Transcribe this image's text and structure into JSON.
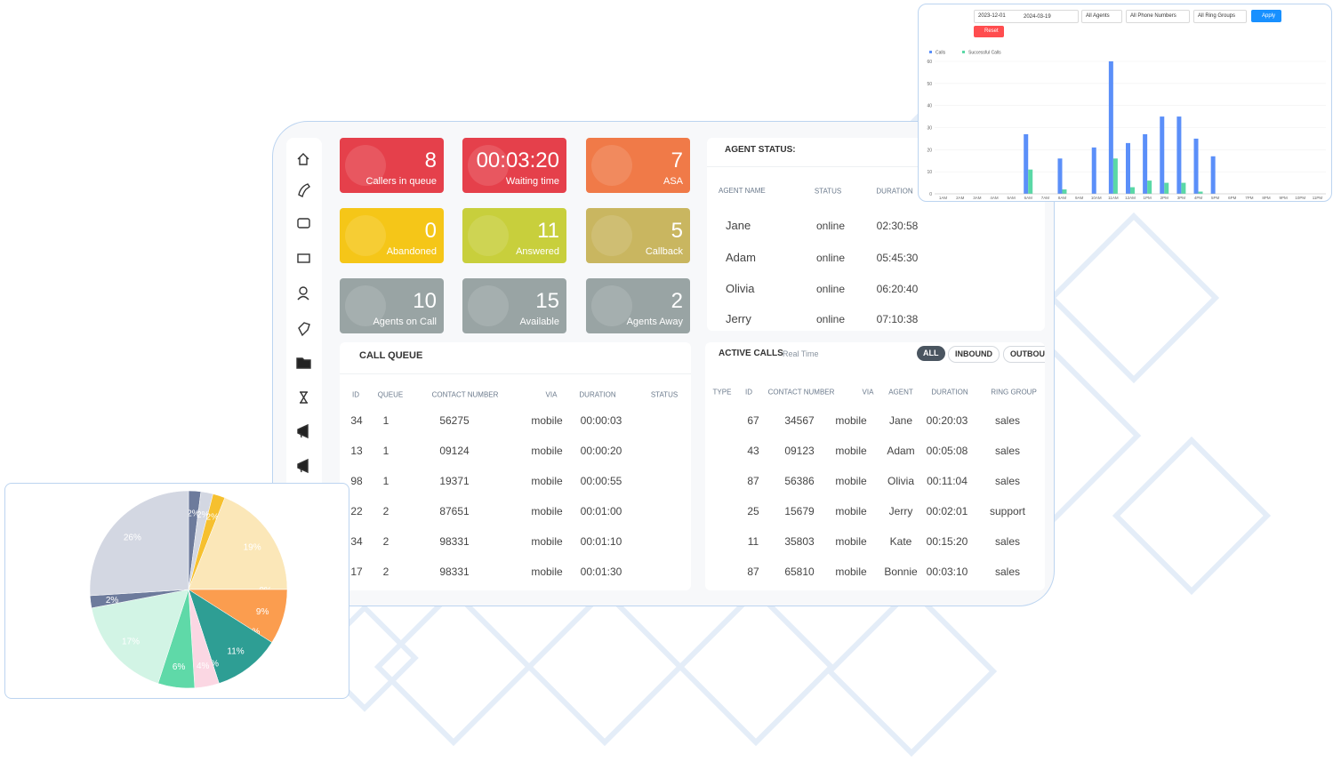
{
  "tiles": [
    {
      "value": 8,
      "label": "Callers in queue",
      "color": "#e5404b"
    },
    {
      "value": "00:03:20",
      "label": "Waiting time",
      "color": "#e5404b"
    },
    {
      "value": 7,
      "label": "ASA",
      "color": "#f07a48"
    },
    {
      "value": 0,
      "label": "Abandoned",
      "color": "#f5c618"
    },
    {
      "value": 11,
      "label": "Answered",
      "color": "#c8cf3c"
    },
    {
      "value": 5,
      "label": "Callback",
      "color": "#c9b660"
    },
    {
      "value": 10,
      "label": "Agents on Call",
      "color": "#99a4a4"
    },
    {
      "value": 15,
      "label": "Available",
      "color": "#99a4a4"
    },
    {
      "value": 2,
      "label": "Agents Away",
      "color": "#99a4a4"
    }
  ],
  "agent_status": {
    "title": "AGENT STATUS:",
    "columns": [
      "AGENT NAME",
      "STATUS",
      "DURATION"
    ],
    "rows": [
      [
        "Jane",
        "online",
        "02:30:58"
      ],
      [
        "Adam",
        "online",
        "05:45:30"
      ],
      [
        "Olivia",
        "online",
        "06:20:40"
      ],
      [
        "Jerry",
        "online",
        "07:10:38"
      ]
    ]
  },
  "call_queue": {
    "title": "CALL QUEUE",
    "columns": [
      "ID",
      "QUEUE",
      "CONTACT NUMBER",
      "VIA",
      "DURATION",
      "STATUS"
    ],
    "rows": [
      [
        "34",
        "1",
        "56275",
        "mobile",
        "00:00:03"
      ],
      [
        "13",
        "1",
        "09124",
        "mobile",
        "00:00:20"
      ],
      [
        "98",
        "1",
        "19371",
        "mobile",
        "00:00:55"
      ],
      [
        "22",
        "2",
        "87651",
        "mobile",
        "00:01:00"
      ],
      [
        "34",
        "2",
        "98331",
        "mobile",
        "00:01:10"
      ],
      [
        "17",
        "2",
        "98331",
        "mobile",
        "00:01:30"
      ]
    ]
  },
  "active_calls": {
    "title": "ACTIVE CALLS",
    "subtitle": "Real Time",
    "filters": [
      "ALL",
      "INBOUND",
      "OUTBOUND"
    ],
    "columns": [
      "TYPE",
      "ID",
      "CONTACT NUMBER",
      "VIA",
      "AGENT",
      "DURATION",
      "RING GROUP"
    ],
    "rows": [
      [
        "67",
        "34567",
        "mobile",
        "Jane",
        "00:20:03",
        "sales"
      ],
      [
        "43",
        "09123",
        "mobile",
        "Adam",
        "00:05:08",
        "sales"
      ],
      [
        "87",
        "56386",
        "mobile",
        "Olivia",
        "00:11:04",
        "sales"
      ],
      [
        "25",
        "15679",
        "mobile",
        "Jerry",
        "00:02:01",
        "support"
      ],
      [
        "11",
        "35803",
        "mobile",
        "Kate",
        "00:15:20",
        "sales"
      ],
      [
        "87",
        "65810",
        "mobile",
        "Bonnie",
        "00:03:10",
        "sales"
      ]
    ]
  },
  "chart_filters": {
    "start_date": "2023-12-01",
    "end_date": "2024-03-19",
    "agents": "All Agents",
    "phone_numbers": "All Phone Numbers",
    "ring_groups": "All Ring Groups",
    "apply": "Apply",
    "reset": "Reset"
  },
  "chart_data": [
    {
      "type": "bar",
      "categories": [
        "1AM",
        "2AM",
        "3AM",
        "4AM",
        "5AM",
        "6AM",
        "7AM",
        "8AM",
        "9AM",
        "10AM",
        "11AM",
        "12AM",
        "1PM",
        "2PM",
        "3PM",
        "4PM",
        "5PM",
        "6PM",
        "7PM",
        "8PM",
        "9PM",
        "10PM",
        "11PM"
      ],
      "series": [
        {
          "name": "Calls",
          "color": "#5b8ff9",
          "values": [
            0,
            0,
            0,
            0,
            0,
            27,
            0,
            16,
            0,
            21,
            60,
            23,
            27,
            35,
            35,
            25,
            17,
            0,
            0,
            0,
            0,
            0,
            0
          ]
        },
        {
          "name": "Successful Calls",
          "color": "#5ad8a6",
          "values": [
            0,
            0,
            0,
            0,
            0,
            11,
            0,
            2,
            0,
            0,
            16,
            3,
            6,
            5,
            5,
            1,
            0,
            0,
            0,
            0,
            0,
            0,
            0
          ]
        }
      ],
      "ylim": [
        0,
        60
      ],
      "yticks": [
        0,
        10,
        20,
        30,
        40,
        50,
        60
      ],
      "grid": true,
      "legend": "top-left"
    },
    {
      "type": "pie",
      "values": [
        2,
        2,
        2,
        19,
        0,
        9,
        0,
        11,
        0,
        4,
        6,
        17,
        2,
        26
      ],
      "value_labels": [
        "2%",
        "2%",
        "2%",
        "19%",
        "0%",
        "9%",
        "0%",
        "11%",
        "0%",
        "4%",
        "6%",
        "17%",
        "2%",
        "26%"
      ],
      "colors": [
        "#6d7b9c",
        "#d3d7e2",
        "#f6c02f",
        "#fbe7b8",
        "#f08a5d",
        "#fb9d4f",
        "#2a7f86",
        "#2e9e94",
        "#c55b8a",
        "#fbd7e3",
        "#5fd9a8",
        "#d2f4e5",
        "#6d7b9c",
        "#d3d7e2"
      ]
    }
  ]
}
